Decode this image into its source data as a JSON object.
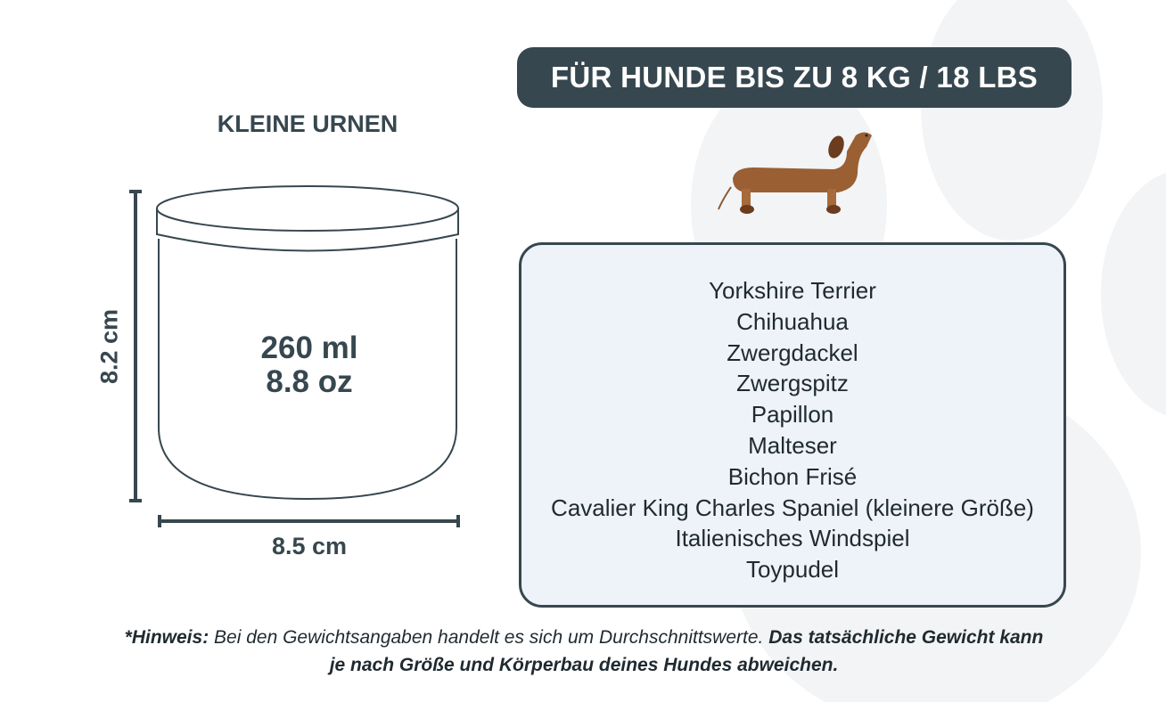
{
  "header": {
    "title": "FÜR HUNDE BIS ZU 8 KG / 18 LBS"
  },
  "product": {
    "category": "KLEINE URNEN",
    "volume_ml": "260 ml",
    "volume_oz": "8.8 oz",
    "height": "8.2 cm",
    "width": "8.5 cm"
  },
  "breeds": [
    "Yorkshire Terrier",
    "Chihuahua",
    "Zwergdackel",
    "Zwergspitz",
    "Papillon",
    "Malteser",
    "Bichon Frisé",
    "Cavalier King Charles Spaniel (kleinere Größe)",
    "Italienisches Windspiel",
    "Toypudel"
  ],
  "note": {
    "label": "*Hinweis:",
    "text": " Bei den Gewichtsangaben handelt es sich um Durchschnittswerte. ",
    "bold_text": "Das tatsächliche Gewicht kann je nach Größe und Körperbau deines Hundes abweichen."
  },
  "colors": {
    "primary": "#37474f",
    "box_bg": "#eef2f9",
    "paw_bg": "#f2f4f6",
    "dog": "#9a5f33"
  },
  "icons": {
    "dog": "dachshund-illustration",
    "background": "paw-print"
  }
}
